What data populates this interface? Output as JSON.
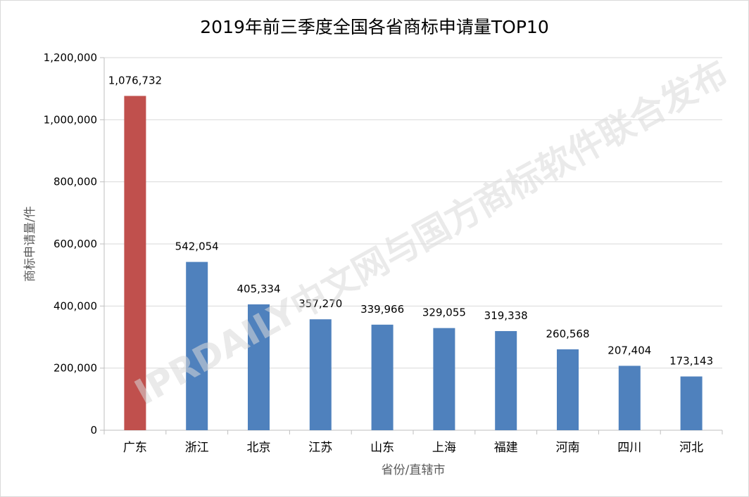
{
  "chart_data": {
    "type": "bar",
    "title": "2019年前三季度全国各省商标申请量TOP10",
    "xlabel": "省份/直辖市",
    "ylabel": "商标申请量/件",
    "categories": [
      "广东",
      "浙江",
      "北京",
      "江苏",
      "山东",
      "上海",
      "福建",
      "河南",
      "四川",
      "河北"
    ],
    "values": [
      1076732,
      542054,
      405334,
      357270,
      339966,
      329055,
      319338,
      260568,
      207404,
      173143
    ],
    "value_labels": [
      "1,076,732",
      "542,054",
      "405,334",
      "357,270",
      "339,966",
      "329,055",
      "319,338",
      "260,568",
      "207,404",
      "173,143"
    ],
    "ylim": [
      0,
      1200000
    ],
    "yticks": [
      0,
      200000,
      400000,
      600000,
      800000,
      1000000,
      1200000
    ],
    "ytick_labels": [
      "0",
      "200,000",
      "400,000",
      "600,000",
      "800,000",
      "1,000,000",
      "1,200,000"
    ],
    "grid": true,
    "legend": "none",
    "colors": {
      "highlight": "#c0504d",
      "bar": "#4f81bd",
      "grid": "#d9d9d9",
      "axis": "#bfbfbf"
    },
    "highlight_index": 0,
    "watermark": "IPRDAILY中文网与国方商标软件联合发布"
  }
}
